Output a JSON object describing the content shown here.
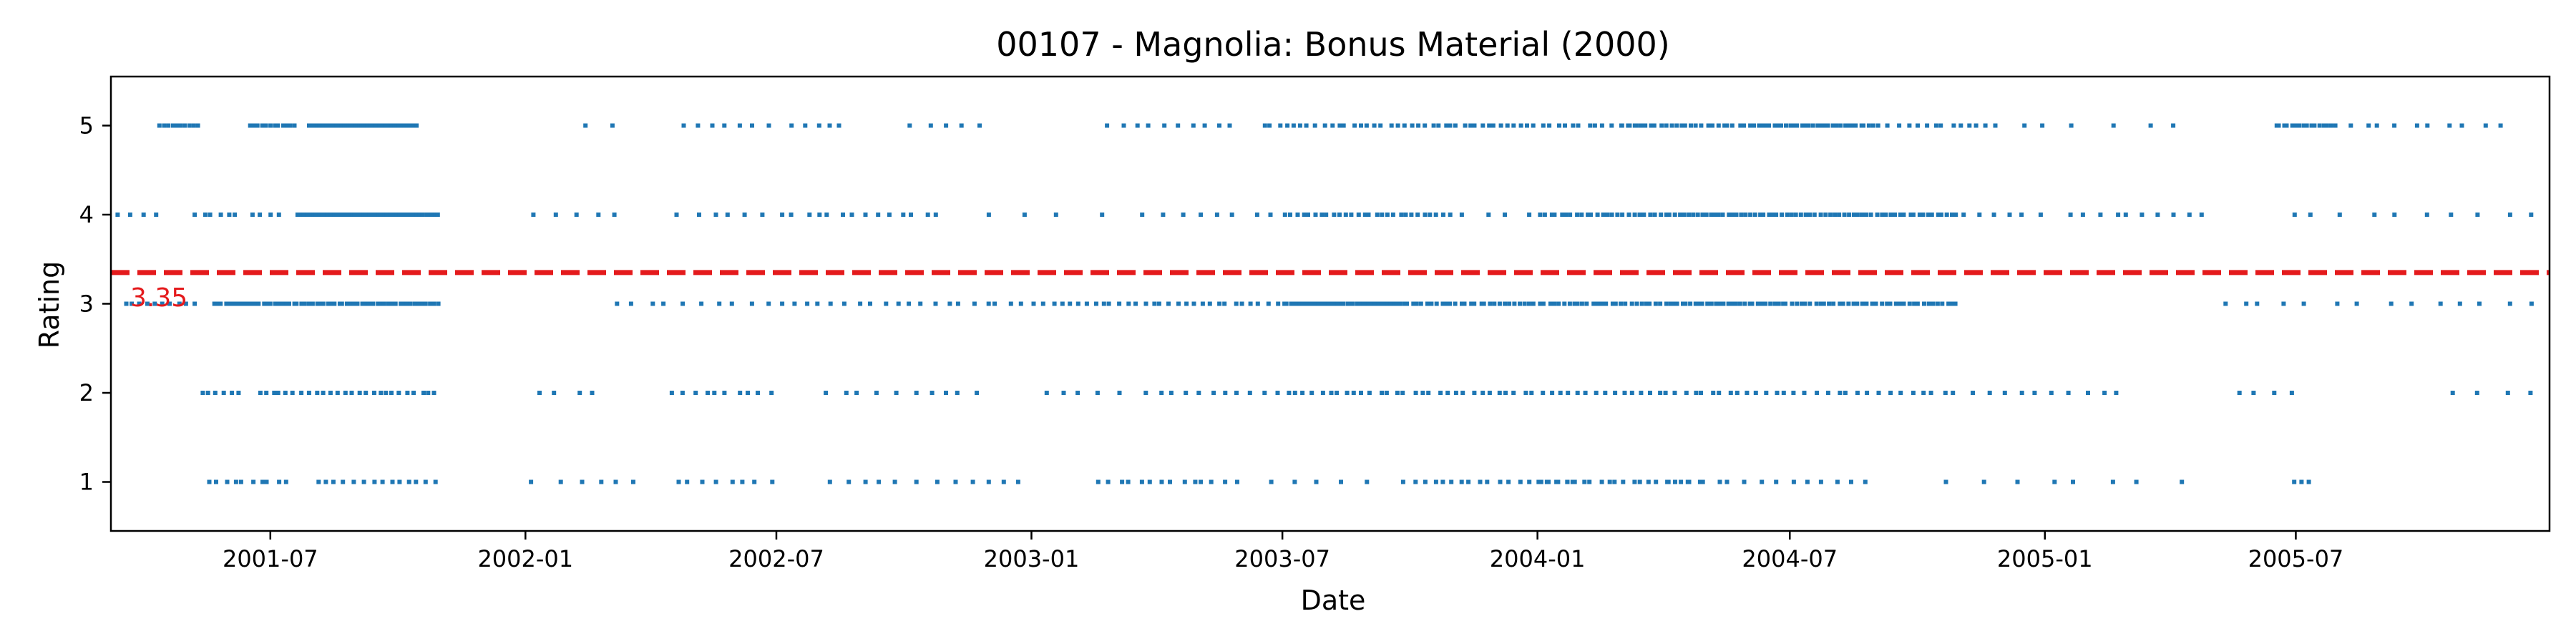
{
  "chart_data": {
    "type": "scatter",
    "title": "00107 - Magnolia: Bonus Material (2000)",
    "xlabel": "Date",
    "ylabel": "Rating",
    "xlim": [
      "2001-03-08",
      "2005-12-31"
    ],
    "ylim": [
      0.45,
      5.55
    ],
    "x_ticks": [
      "2001-07",
      "2002-01",
      "2002-07",
      "2003-01",
      "2003-07",
      "2004-01",
      "2004-07",
      "2005-01",
      "2005-07"
    ],
    "y_ticks": [
      "1",
      "2",
      "3",
      "4",
      "5"
    ],
    "grid": false,
    "point_color": "#1f77b4",
    "mean": {
      "value": 3.35,
      "label": "3.35",
      "color": "#e41a1c",
      "style": "dashed"
    },
    "series": [
      {
        "x_range": [
          "2001-03-08",
          "2005-12-31"
        ],
        "points_by_rating": {
          "5": [
            [
              "2001-04-10",
              "2001-05-12",
              10
            ],
            [
              "2001-06-15",
              "2001-07-20",
              12
            ],
            [
              "2001-07-28",
              "2001-10-15",
              50
            ],
            [
              "2002-02-01",
              "2002-03-10",
              2
            ],
            [
              "2002-04-20",
              "2002-06-30",
              7
            ],
            [
              "2002-07-10",
              "2002-08-20",
              5
            ],
            [
              "2002-10-01",
              "2002-11-30",
              5
            ],
            [
              "2003-02-20",
              "2003-05-31",
              10
            ],
            [
              "2003-06-15",
              "2003-09-30",
              20
            ],
            [
              "2003-10-01",
              "2003-12-31",
              20
            ],
            [
              "2004-01-01",
              "2004-03-20",
              14
            ],
            [
              "2004-03-01",
              "2004-05-31",
              24
            ],
            [
              "2004-06-01",
              "2004-08-31",
              32
            ],
            [
              "2004-09-01",
              "2004-11-30",
              14
            ],
            [
              "2004-12-01",
              "2005-02-28",
              4
            ],
            [
              "2005-03-15",
              "2005-04-15",
              2
            ],
            [
              "2005-06-15",
              "2005-07-31",
              16
            ],
            [
              "2005-08-01",
              "2005-11-30",
              10
            ]
          ],
          "4": [
            [
              "2001-03-08",
              "2001-04-15",
              4
            ],
            [
              "2001-05-05",
              "2001-06-10",
              6
            ],
            [
              "2001-06-15",
              "2001-07-10",
              4
            ],
            [
              "2001-07-20",
              "2001-10-31",
              48
            ],
            [
              "2002-01-01",
              "2002-03-15",
              5
            ],
            [
              "2002-04-15",
              "2002-06-30",
              6
            ],
            [
              "2002-07-01",
              "2002-10-30",
              14
            ],
            [
              "2002-11-15",
              "2003-03-01",
              4
            ],
            [
              "2003-03-15",
              "2003-06-30",
              8
            ],
            [
              "2003-07-01",
              "2003-10-31",
              28
            ],
            [
              "2003-11-01",
              "2003-12-31",
              4
            ],
            [
              "2004-01-01",
              "2004-03-31",
              24
            ],
            [
              "2004-04-01",
              "2004-06-30",
              28
            ],
            [
              "2004-07-01",
              "2004-10-31",
              36
            ],
            [
              "2004-11-01",
              "2004-12-31",
              6
            ],
            [
              "2005-01-15",
              "2005-04-30",
              10
            ],
            [
              "2005-06-15",
              "2005-12-31",
              10
            ]
          ],
          "3": [
            [
              "2001-03-15",
              "2001-05-10",
              10
            ],
            [
              "2001-05-20",
              "2001-10-31",
              60
            ],
            [
              "2002-03-01",
              "2002-06-30",
              10
            ],
            [
              "2002-07-01",
              "2002-12-31",
              20
            ],
            [
              "2003-01-01",
              "2003-06-30",
              30
            ],
            [
              "2003-07-01",
              "2003-09-30",
              40
            ],
            [
              "2003-10-01",
              "2003-12-31",
              26
            ],
            [
              "2004-01-01",
              "2004-03-31",
              26
            ],
            [
              "2004-04-01",
              "2004-06-30",
              30
            ],
            [
              "2004-07-01",
              "2004-10-31",
              36
            ],
            [
              "2005-05-01",
              "2005-06-30",
              4
            ],
            [
              "2005-07-01",
              "2005-12-31",
              10
            ]
          ],
          "2": [
            [
              "2001-05-10",
              "2001-06-10",
              6
            ],
            [
              "2001-06-20",
              "2001-10-31",
              26
            ],
            [
              "2002-01-01",
              "2002-02-28",
              4
            ],
            [
              "2002-04-15",
              "2002-06-30",
              10
            ],
            [
              "2002-08-01",
              "2002-11-30",
              10
            ],
            [
              "2003-01-01",
              "2003-03-31",
              6
            ],
            [
              "2003-04-01",
              "2003-06-30",
              10
            ],
            [
              "2003-07-01",
              "2003-12-31",
              30
            ],
            [
              "2004-01-01",
              "2004-06-30",
              28
            ],
            [
              "2004-07-01",
              "2004-10-31",
              16
            ],
            [
              "2004-11-01",
              "2005-02-28",
              10
            ],
            [
              "2005-05-15",
              "2005-07-01",
              4
            ],
            [
              "2005-10-15",
              "2005-12-31",
              4
            ]
          ],
          "1": [
            [
              "2001-05-15",
              "2001-07-15",
              10
            ],
            [
              "2001-08-01",
              "2001-10-31",
              14
            ],
            [
              "2002-01-01",
              "2002-03-31",
              6
            ],
            [
              "2002-04-15",
              "2002-06-30",
              8
            ],
            [
              "2002-08-01",
              "2002-12-31",
              12
            ],
            [
              "2003-02-15",
              "2003-05-31",
              14
            ],
            [
              "2003-06-15",
              "2003-09-30",
              6
            ],
            [
              "2003-10-01",
              "2004-01-31",
              18
            ],
            [
              "2004-01-01",
              "2004-04-30",
              20
            ],
            [
              "2004-04-01",
              "2004-08-31",
              14
            ],
            [
              "2004-10-15",
              "2005-04-15",
              8
            ],
            [
              "2005-06-25",
              "2005-07-15",
              3
            ]
          ]
        }
      }
    ]
  }
}
